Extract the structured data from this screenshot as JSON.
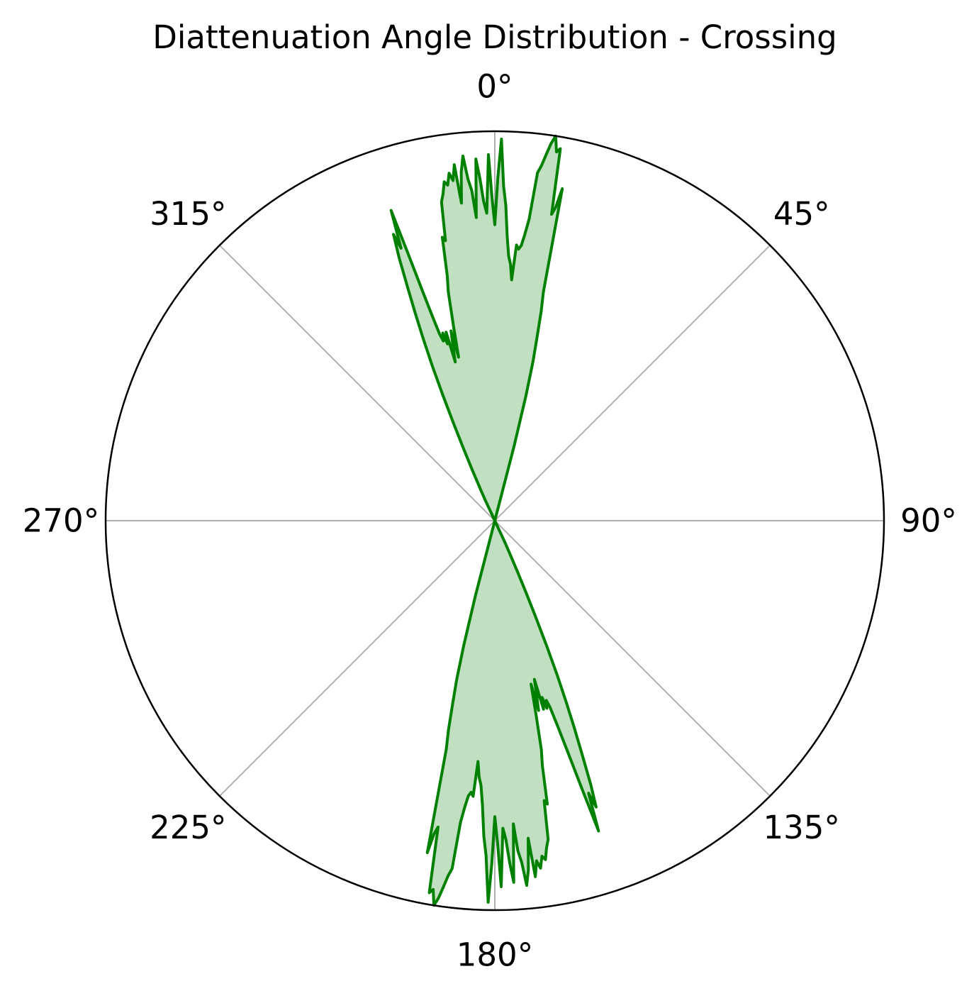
{
  "chart_data": {
    "type": "polar-area",
    "title": "Diattenuation Angle Distribution - Crossing",
    "angle_unit": "degrees",
    "angle_direction": "clockwise",
    "zero_location": "top",
    "angular_ticks": [
      "0°",
      "45°",
      "90°",
      "135°",
      "180°",
      "225°",
      "270°",
      "315°"
    ],
    "radial_ticks_shown": false,
    "rlim": [
      0,
      1.0
    ],
    "grid": true,
    "colors": {
      "line": "#008000",
      "fill": "#c1e0c1",
      "grid": "#b0b0b0",
      "frame": "#000000"
    },
    "series": [
      {
        "theta": [
          -25.5,
          -25,
          -24.5,
          -24,
          -23.5,
          -23,
          -22.5,
          -22,
          -21.5,
          -21,
          -20.5,
          -20,
          -19.5,
          -19,
          -18.5,
          -18,
          -17.5,
          -17,
          -16.5,
          -16,
          -15.5,
          -15,
          -14.5,
          -14,
          -13.5,
          -13,
          -12.5,
          -12,
          -11.5,
          -11,
          -10.5,
          -10,
          -9.5,
          -9,
          -8.5,
          -8,
          -7.5,
          -7,
          -6.5,
          -6,
          -5.5,
          -5,
          -4.5,
          -4,
          -3.5,
          -3,
          -2.5,
          -2,
          -1.5,
          -1,
          -0.5,
          0,
          0.5,
          1,
          1.5,
          2,
          2.5,
          3,
          3.5,
          4,
          4.5,
          5,
          5.5,
          6,
          6.5,
          7,
          7.5,
          8,
          8.5,
          9,
          9.5,
          10,
          10.5,
          11,
          11.5,
          12,
          12.5,
          13,
          13.5,
          14,
          14.5,
          15
        ],
        "r": [
          0.0,
          0.06,
          0.09,
          0.14,
          0.2,
          0.27,
          0.35,
          0.43,
          0.5,
          0.57,
          0.64,
          0.72,
          0.78,
          0.74,
          0.84,
          0.72,
          0.62,
          0.55,
          0.5,
          0.48,
          0.5,
          0.47,
          0.5,
          0.42,
          0.46,
          0.5,
          0.43,
          0.51,
          0.6,
          0.64,
          0.74,
          0.73,
          0.83,
          0.85,
          0.88,
          0.87,
          0.9,
          0.88,
          0.92,
          0.82,
          0.9,
          0.94,
          0.88,
          0.85,
          0.78,
          0.93,
          0.88,
          0.82,
          0.79,
          0.94,
          0.83,
          0.76,
          0.88,
          0.98,
          0.86,
          0.81,
          0.73,
          0.68,
          0.66,
          0.62,
          0.71,
          0.7,
          0.71,
          0.74,
          0.78,
          0.9,
          0.92,
          0.95,
          0.98,
          1.0,
          0.96,
          0.97,
          0.8,
          0.82,
          0.87,
          0.6,
          0.55,
          0.48,
          0.42,
          0.33,
          0.2,
          0.0
        ]
      },
      {
        "theta": [
          154.5,
          155,
          155.5,
          156,
          156.5,
          157,
          157.5,
          158,
          158.5,
          159,
          159.5,
          160,
          160.5,
          161,
          161.5,
          162,
          162.5,
          163,
          163.5,
          164,
          164.5,
          165,
          165.5,
          166,
          166.5,
          167,
          167.5,
          168,
          168.5,
          169,
          169.5,
          170,
          170.5,
          171,
          171.5,
          172,
          172.5,
          173,
          173.5,
          174,
          174.5,
          175,
          175.5,
          176,
          176.5,
          177,
          177.5,
          178,
          178.5,
          179,
          179.5,
          180,
          180.5,
          181,
          181.5,
          182,
          182.5,
          183,
          183.5,
          184,
          184.5,
          185,
          185.5,
          186,
          186.5,
          187,
          187.5,
          188,
          188.5,
          189,
          189.5,
          190,
          190.5,
          191,
          191.5,
          192,
          192.5,
          193,
          193.5,
          194,
          194.5,
          195
        ],
        "r": [
          0.0,
          0.06,
          0.09,
          0.14,
          0.2,
          0.27,
          0.35,
          0.43,
          0.5,
          0.57,
          0.64,
          0.72,
          0.78,
          0.74,
          0.84,
          0.72,
          0.62,
          0.55,
          0.5,
          0.48,
          0.5,
          0.47,
          0.5,
          0.42,
          0.46,
          0.5,
          0.43,
          0.51,
          0.6,
          0.64,
          0.74,
          0.73,
          0.83,
          0.85,
          0.88,
          0.87,
          0.9,
          0.88,
          0.92,
          0.82,
          0.9,
          0.94,
          0.88,
          0.85,
          0.78,
          0.93,
          0.88,
          0.82,
          0.79,
          0.94,
          0.83,
          0.76,
          0.88,
          0.98,
          0.86,
          0.81,
          0.73,
          0.68,
          0.66,
          0.62,
          0.71,
          0.7,
          0.71,
          0.74,
          0.78,
          0.9,
          0.92,
          0.95,
          0.98,
          1.0,
          0.96,
          0.97,
          0.8,
          0.82,
          0.87,
          0.6,
          0.55,
          0.48,
          0.42,
          0.33,
          0.2,
          0.0
        ]
      }
    ]
  }
}
